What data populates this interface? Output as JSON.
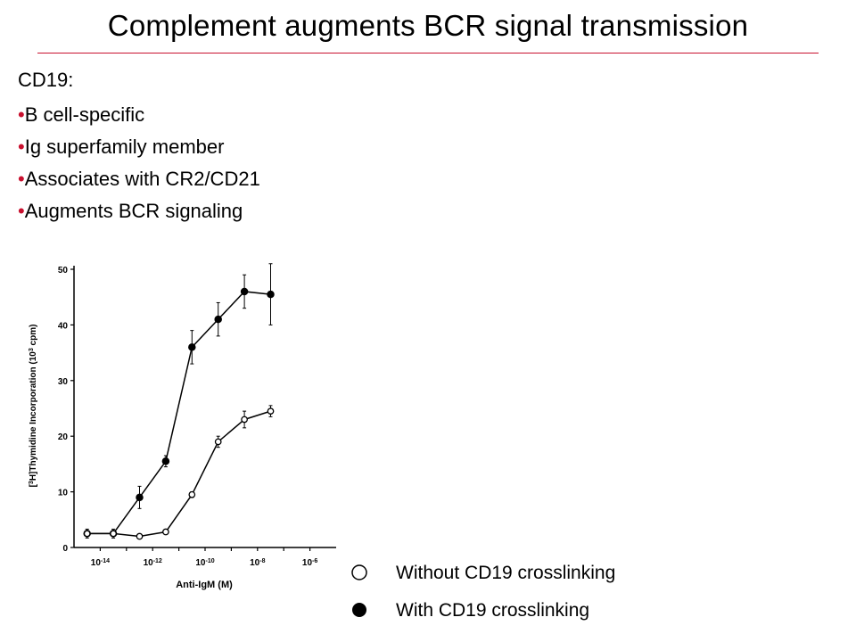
{
  "title": "Complement augments BCR signal transmission",
  "heading": "CD19:",
  "bullet_symbol": "•",
  "bullets": [
    "B cell-specific",
    "Ig superfamily member",
    "Associates with CR2/CD21",
    "Augments BCR signaling"
  ],
  "colors": {
    "accent": "#c8102e"
  },
  "chart_data": {
    "type": "line",
    "ylabel_parts": [
      "[",
      "3",
      "H]Thymidine Incorporation (10",
      "3",
      " cpm)"
    ],
    "xlabel": "Anti-IgM (M)",
    "x_scale": "log10",
    "xlim": [
      -15,
      -5
    ],
    "ylim": [
      0,
      50
    ],
    "y_ticks": [
      0,
      10,
      20,
      30,
      40,
      50
    ],
    "x_ticks": [
      {
        "exp": -14,
        "base": "10",
        "power": "-14"
      },
      {
        "exp": -12,
        "base": "10",
        "power": "-12"
      },
      {
        "exp": -10,
        "base": "10",
        "power": "-10"
      },
      {
        "exp": -8,
        "base": "10",
        "power": "-8"
      },
      {
        "exp": -6,
        "base": "10",
        "power": "-6"
      }
    ],
    "series": [
      {
        "name": "With CD19 crosslinking",
        "marker": "filled-circle",
        "x": [
          -14.5,
          -13.5,
          -12.5,
          -11.5,
          -10.5,
          -9.5,
          -8.5,
          -7.5
        ],
        "y": [
          2.5,
          2.5,
          9,
          15.5,
          36,
          41,
          46,
          45.5
        ],
        "err": [
          0.8,
          0.8,
          2,
          1,
          3,
          3,
          3,
          5.5
        ]
      },
      {
        "name": "Without CD19 crosslinking",
        "marker": "open-circle",
        "x": [
          -14.5,
          -13.5,
          -12.5,
          -11.5,
          -10.5,
          -9.5,
          -8.5,
          -7.5
        ],
        "y": [
          2.5,
          2.5,
          2,
          2.8,
          9.5,
          19,
          23,
          24.5
        ],
        "err": [
          0.3,
          0.3,
          0.3,
          0.3,
          0.5,
          1,
          1.5,
          1
        ]
      }
    ]
  },
  "legend": [
    {
      "label": "Without CD19 crosslinking",
      "marker": "open-circle"
    },
    {
      "label": "With CD19 crosslinking",
      "marker": "filled-circle"
    }
  ]
}
